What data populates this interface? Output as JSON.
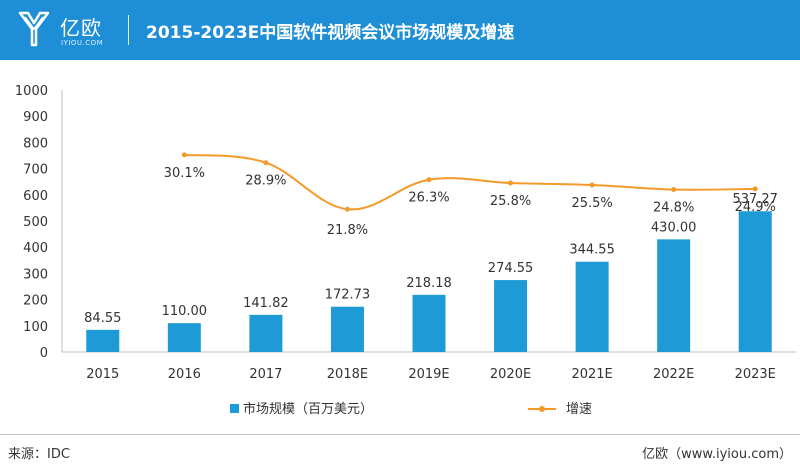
{
  "header": {
    "brand_name": "亿欧",
    "brand_sub": "IYIOU.COM",
    "title": "2015-2023E中国软件视频会议市场规模及增速"
  },
  "footer": {
    "source": "来源：IDC",
    "credit": "亿欧（www.iyiou.com）"
  },
  "colors": {
    "header_bg": "#1e8fd6",
    "bar": "#1e9bd7",
    "line": "#f39a2b"
  },
  "chart_data": {
    "type": "bar",
    "categories": [
      "2015",
      "2016",
      "2017",
      "2018E",
      "2019E",
      "2020E",
      "2021E",
      "2022E",
      "2023E"
    ],
    "ylim": [
      0,
      1000
    ],
    "yticks": [
      0,
      100,
      200,
      300,
      400,
      500,
      600,
      700,
      800,
      900,
      1000
    ],
    "grid": false,
    "legend_position": "bottom",
    "series": [
      {
        "name": "市场规模（百万美元）",
        "type": "bar",
        "values": [
          84.55,
          110.0,
          141.82,
          172.73,
          218.18,
          274.55,
          344.55,
          430.0,
          537.27
        ],
        "labels": [
          "84.55",
          "110.00",
          "141.82",
          "172.73",
          "218.18",
          "274.55",
          "344.55",
          "430.00",
          "537.27"
        ]
      },
      {
        "name": "增速",
        "type": "line",
        "smooth": true,
        "values": [
          null,
          30.1,
          28.9,
          21.8,
          26.3,
          25.8,
          25.5,
          24.8,
          24.9
        ],
        "labels": [
          "",
          "30.1%",
          "28.9%",
          "21.8%",
          "26.3%",
          "25.8%",
          "25.5%",
          "24.8%",
          "24.9%"
        ]
      }
    ]
  }
}
